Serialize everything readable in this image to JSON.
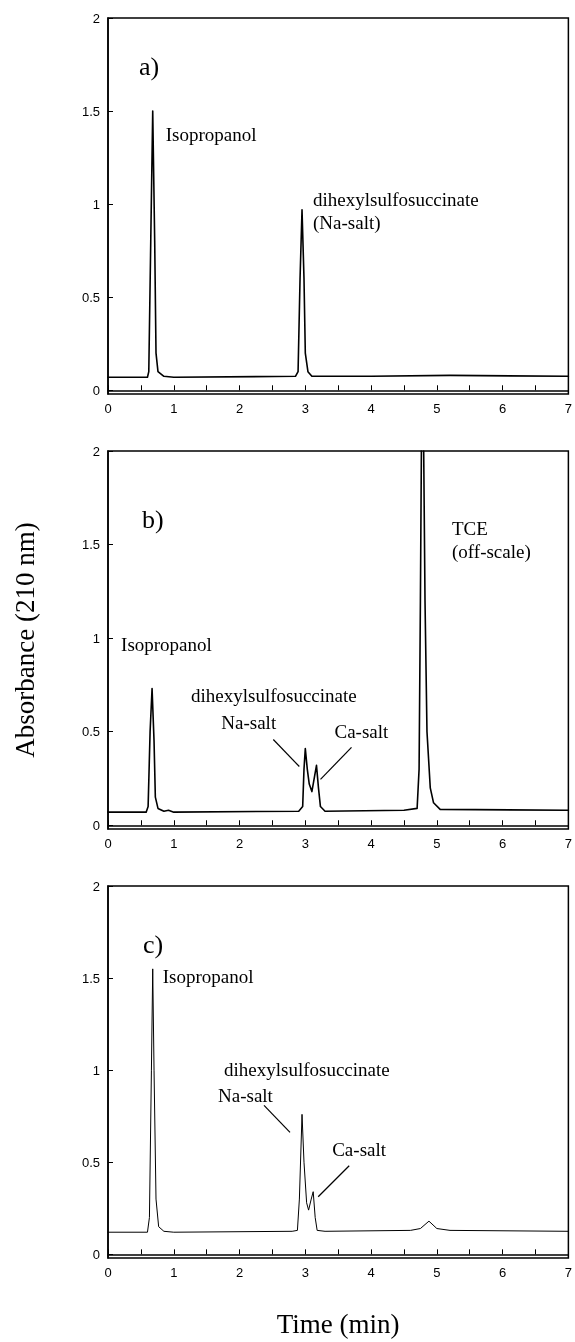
{
  "chart_data": [
    {
      "type": "line",
      "title": "a)",
      "marker": "none",
      "line_style": "solid",
      "xlim": [
        0,
        7
      ],
      "ylim": [
        -0.02,
        2
      ],
      "xticks": [
        0,
        {
          "value": 0.5,
          "label": null
        },
        1,
        {
          "value": 1.5,
          "label": null
        },
        2,
        {
          "value": 2.5,
          "label": null
        },
        3,
        {
          "value": 3.5,
          "label": null
        },
        4,
        {
          "value": 4.5,
          "label": null
        },
        5,
        {
          "value": 5.5,
          "label": null
        },
        6,
        {
          "value": 6.5,
          "label": null
        },
        7
      ],
      "yticks": [
        0,
        0.5,
        1,
        1.5,
        2
      ],
      "series": [
        {
          "color": "#000000",
          "x": [
            0,
            0.6,
            0.62,
            0.65,
            0.68,
            0.71,
            0.73,
            0.76,
            0.85,
            1,
            2.85,
            2.89,
            2.92,
            2.95,
            2.98,
            3.0,
            3.04,
            3.1,
            4,
            5.2,
            7
          ],
          "values": [
            0.07,
            0.07,
            0.1,
            0.8,
            1.5,
            0.8,
            0.2,
            0.1,
            0.075,
            0.07,
            0.075,
            0.1,
            0.6,
            0.97,
            0.6,
            0.2,
            0.1,
            0.075,
            0.075,
            0.08,
            0.075
          ]
        }
      ],
      "annotations": [
        {
          "text": "Isopropanol",
          "x": 0.68,
          "y": 1.5
        },
        {
          "text": "dihexylsulfosuccinate\n(Na-salt)",
          "x": 2.95,
          "y": 0.97
        }
      ]
    },
    {
      "type": "line",
      "title": "b)",
      "ylabel": "Absorbance (210 nm)",
      "marker": "none",
      "line_style": "solid",
      "xlim": [
        0,
        7
      ],
      "ylim": [
        -0.02,
        2
      ],
      "xticks": [
        0,
        {
          "value": 0.5,
          "label": null
        },
        1,
        {
          "value": 1.5,
          "label": null
        },
        2,
        {
          "value": 2.5,
          "label": null
        },
        3,
        {
          "value": 3.5,
          "label": null
        },
        4,
        {
          "value": 4.5,
          "label": null
        },
        5,
        {
          "value": 5.5,
          "label": null
        },
        6,
        {
          "value": 6.5,
          "label": null
        },
        7
      ],
      "yticks": [
        0,
        0.5,
        1,
        1.5,
        2
      ],
      "series": [
        {
          "color": "#000000",
          "x": [
            0,
            0.58,
            0.61,
            0.64,
            0.67,
            0.7,
            0.72,
            0.76,
            0.85,
            0.92,
            1,
            2.9,
            2.96,
            2.98,
            3.0,
            3.03,
            3.06,
            3.1,
            3.14,
            3.17,
            3.2,
            3.23,
            3.3,
            4.5,
            4.7,
            4.73,
            4.75,
            4.765,
            4.78,
            4.8,
            4.82,
            4.85,
            4.9,
            4.95,
            5.05,
            7
          ],
          "values": [
            0.07,
            0.07,
            0.1,
            0.5,
            0.73,
            0.45,
            0.15,
            0.09,
            0.075,
            0.08,
            0.07,
            0.075,
            0.1,
            0.3,
            0.41,
            0.3,
            0.22,
            0.18,
            0.26,
            0.32,
            0.2,
            0.1,
            0.075,
            0.08,
            0.09,
            0.3,
            1.2,
            2.0,
            null,
            2.0,
            1.2,
            0.5,
            0.2,
            0.12,
            0.085,
            0.08
          ]
        }
      ],
      "annotations": [
        {
          "text": "Isopropanol",
          "x": 0.67,
          "y": 0.73
        },
        "dihexylsulfosuccinate",
        {
          "text": "Na-salt",
          "x": 3.0,
          "y": 0.41
        },
        {
          "text": "Ca-salt",
          "x": 3.17,
          "y": 0.32
        },
        "TCE\n(off-scale)"
      ]
    },
    {
      "type": "line",
      "title": "c)",
      "xlabel": "Time (min)",
      "marker": "none",
      "line_style": "solid",
      "xlim": [
        0,
        7
      ],
      "ylim": [
        -0.02,
        2
      ],
      "xticks": [
        0,
        {
          "value": 0.5,
          "label": null
        },
        1,
        {
          "value": 1.5,
          "label": null
        },
        2,
        {
          "value": 2.5,
          "label": null
        },
        3,
        {
          "value": 3.5,
          "label": null
        },
        4,
        {
          "value": 4.5,
          "label": null
        },
        5,
        {
          "value": 5.5,
          "label": null
        },
        6,
        {
          "value": 6.5,
          "label": null
        },
        7
      ],
      "yticks": [
        0,
        0.5,
        1,
        1.5,
        2
      ],
      "series": [
        {
          "color": "#000000",
          "x": [
            0,
            0.6,
            0.63,
            0.66,
            0.68,
            0.7,
            0.73,
            0.77,
            0.85,
            1,
            2.8,
            2.88,
            2.91,
            2.95,
            2.98,
            3.02,
            3.05,
            3.09,
            3.12,
            3.15,
            3.18,
            3.3,
            4.6,
            4.75,
            4.88,
            5.0,
            5.2,
            7
          ],
          "values": [
            0.12,
            0.12,
            0.2,
            1.0,
            1.55,
            1.0,
            0.3,
            0.15,
            0.125,
            0.12,
            0.125,
            0.13,
            0.3,
            0.76,
            0.5,
            0.28,
            0.24,
            0.3,
            0.34,
            0.2,
            0.13,
            0.125,
            0.13,
            0.14,
            0.18,
            0.14,
            0.13,
            0.125
          ]
        }
      ],
      "annotations": [
        {
          "text": "Isopropanol",
          "x": 0.68,
          "y": 1.55
        },
        "dihexylsulfosuccinate",
        {
          "text": "Na-salt",
          "x": 2.95,
          "y": 0.76
        },
        {
          "text": "Ca-salt",
          "x": 3.12,
          "y": 0.34
        }
      ]
    }
  ]
}
